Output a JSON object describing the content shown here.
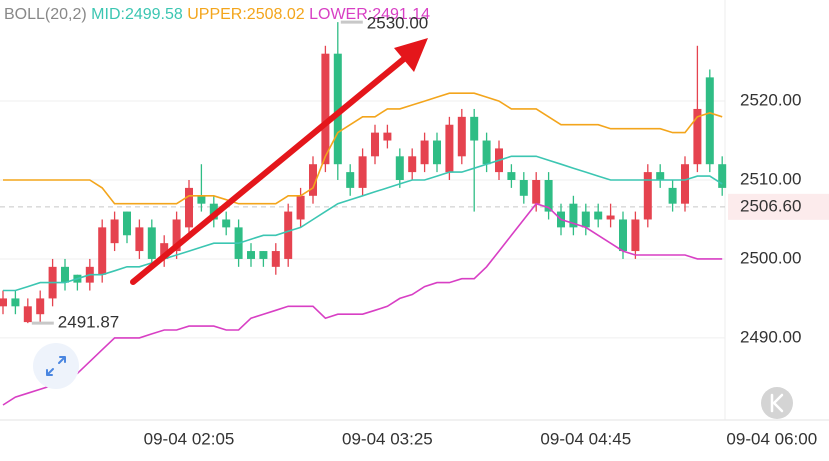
{
  "chart_data": {
    "type": "candlestick",
    "indicator": {
      "name": "BOLL(20,2)",
      "mid": "MID:2499.58",
      "upper": "UPPER:2508.02",
      "lower": "LOWER:2491.14"
    },
    "categories": [
      null,
      null,
      null,
      null,
      null,
      null,
      null,
      null,
      null,
      null,
      null,
      null,
      null,
      null,
      null,
      "09-04 02:05",
      null,
      null,
      null,
      null,
      null,
      null,
      null,
      null,
      null,
      null,
      null,
      null,
      null,
      null,
      null,
      "09-04 03:25",
      null,
      null,
      null,
      null,
      null,
      null,
      null,
      null,
      null,
      null,
      null,
      null,
      null,
      null,
      null,
      "09-04 04:45",
      null,
      null,
      null,
      null,
      null,
      null,
      null,
      null,
      null,
      null,
      null,
      null,
      null,
      null,
      "09-04 06:00"
    ],
    "open": [
      2494,
      2495,
      2492,
      2493,
      2495,
      2499,
      2498,
      2497,
      2498,
      2502,
      2506,
      2501,
      2504,
      2500,
      2501,
      2504,
      2508,
      2507,
      2505,
      2504,
      2501,
      2501,
      2499,
      2500,
      2505,
      2508,
      2512,
      2526,
      2511,
      2509,
      2513,
      2515,
      2513,
      2511,
      2512,
      2515,
      2511,
      2513,
      2518,
      2515,
      2511,
      2511,
      2510,
      2507,
      2510,
      2506,
      2507,
      2506,
      2506,
      2505,
      2505,
      2501,
      2505,
      2511,
      2509,
      2507,
      2512,
      2523,
      2512,
      null,
      null,
      null,
      null
    ],
    "high": [
      2496,
      2496,
      2495,
      2496,
      2500,
      2500,
      2498,
      2500,
      2505,
      2506,
      2506,
      2505,
      2505,
      2503,
      2506,
      2510,
      2512,
      2508,
      2506,
      2505,
      2502,
      2501,
      2502,
      2507,
      2509,
      2513,
      2527,
      2530,
      2512,
      2514,
      2517,
      2517,
      2514,
      2514,
      2516,
      2516,
      2518,
      2519,
      2519,
      2516,
      2515,
      2512,
      2511,
      2511,
      2511,
      2507,
      2508,
      2507,
      2507,
      2507,
      2506,
      2506,
      2512,
      2512,
      2510,
      2513,
      2527,
      2524,
      2513,
      null,
      null,
      null,
      null
    ],
    "low": [
      2493,
      2493,
      2491.87,
      2492,
      2494,
      2496,
      2496,
      2496,
      2497,
      2501,
      2502,
      2500,
      2499,
      2499,
      2500,
      2503,
      2506,
      2504,
      2503,
      2499,
      2499,
      2499,
      2498,
      2499,
      2504,
      2507,
      2511,
      2510,
      2508,
      2508,
      2512,
      2514,
      2509,
      2510,
      2511,
      2511,
      2510,
      2512,
      2506,
      2511,
      2510,
      2509,
      2507,
      2506,
      2505,
      2503,
      2503,
      2503,
      2504,
      2504,
      2500,
      2500,
      2504,
      2509,
      2506,
      2506,
      2511,
      2511,
      2508,
      null,
      null,
      null,
      null
    ],
    "close": [
      2495,
      2494,
      2494,
      2495,
      2499,
      2497,
      2497,
      2499,
      2504,
      2505,
      2503,
      2504,
      2500,
      2502,
      2505,
      2509,
      2507,
      2505,
      2504,
      2500,
      2500,
      2500,
      2501,
      2506,
      2508,
      2512,
      2526,
      2512,
      2509,
      2513,
      2516,
      2516,
      2510,
      2513,
      2515,
      2512,
      2517,
      2518,
      2515,
      2512,
      2514,
      2510,
      2508,
      2510,
      2506,
      2504,
      2504,
      2504,
      2505,
      2505.5,
      2501,
      2505,
      2511,
      2510,
      2507,
      2512,
      2519,
      2512,
      2509,
      null,
      null,
      null,
      null
    ],
    "up_color": "#e5434f",
    "down_color": "#2fbd85",
    "series": [
      {
        "color": "#f3a51c",
        "values": [
          2510,
          2510,
          2510,
          2510,
          2510,
          2510,
          2510,
          2510,
          2509,
          2507,
          2507,
          2507,
          2507,
          2507,
          2507,
          2508,
          2508,
          2508,
          2507.5,
          2507,
          2507,
          2507,
          2507,
          2508,
          2508,
          2509,
          2513,
          2516,
          2517,
          2518,
          2518,
          2519,
          2519,
          2519.5,
          2520,
          2520.5,
          2521,
          2521,
          2521,
          2520.5,
          2520,
          2519,
          2519,
          2519,
          2518,
          2517,
          2517,
          2517,
          2517,
          2516.5,
          2516.5,
          2516.5,
          2516.5,
          2516.5,
          2516,
          2516,
          2518,
          2518.5,
          2518,
          null,
          null,
          null,
          null
        ]
      },
      {
        "color": "#3cc6b2",
        "values": [
          2496,
          2496,
          2496.5,
          2497,
          2497,
          2497,
          2497.5,
          2498,
          2498,
          2498.5,
          2499,
          2499,
          2499.5,
          2500,
          2500.5,
          2501,
          2501.5,
          2502,
          2502,
          2502,
          2502.5,
          2503,
          2503,
          2503.5,
          2504,
          2505,
          2506,
          2507,
          2507.5,
          2508,
          2508.5,
          2509,
          2509.5,
          2510,
          2510,
          2510.5,
          2511,
          2511,
          2511.5,
          2512,
          2512.5,
          2513,
          2513,
          2513,
          2512.5,
          2512,
          2511.5,
          2511,
          2510.5,
          2510,
          2510,
          2510,
          2510,
          2510,
          2510,
          2510,
          2510.5,
          2510.5,
          2509.5,
          null,
          null,
          null,
          null
        ]
      },
      {
        "color": "#d83fc4",
        "values": [
          2481.5,
          2482.5,
          2483,
          2483.5,
          2484,
          2484.5,
          2485.5,
          2487,
          2488.5,
          2490,
          2490,
          2490,
          2490.5,
          2491,
          2491,
          2491.5,
          2491.5,
          2491.5,
          2491,
          2491,
          2492.5,
          2493,
          2493.5,
          2494,
          2494,
          2494,
          2492.5,
          2493,
          2493,
          2493,
          2493.5,
          2494,
          2495,
          2495.5,
          2496.5,
          2497,
          2497,
          2497.5,
          2497.5,
          2499,
          2501,
          2503,
          2505,
          2507,
          2506.5,
          2505,
          2504.5,
          2504,
          2503,
          2502,
          2501,
          2500.5,
          2500.5,
          2500.5,
          2500.5,
          2500.5,
          2500,
          2500,
          2500,
          null,
          null,
          null,
          null
        ]
      }
    ],
    "ylim": [
      2479.6,
      2532.8
    ],
    "yticks": [
      {
        "value": 2520,
        "label": "2520.00"
      },
      {
        "value": 2510,
        "label": "2510.00"
      },
      {
        "value": 2500,
        "label": "2500.00"
      },
      {
        "value": 2490,
        "label": "2490.00"
      }
    ],
    "grid": true,
    "high_marker": {
      "value": 2530,
      "label": "2530.00"
    },
    "low_marker": {
      "value": 2491.87,
      "label": "2491.87"
    },
    "last_price": {
      "value": 2506.6,
      "label": "2506.60",
      "color": "#e5434f"
    }
  }
}
